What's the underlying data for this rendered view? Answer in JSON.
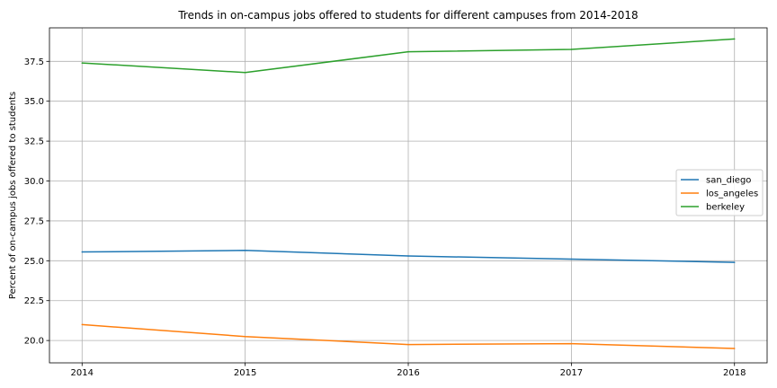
{
  "chart_data": {
    "type": "line",
    "title": "Trends in on-campus jobs offered to students for different campuses from 2014-2018",
    "xlabel": "",
    "ylabel": "Percent of on-campus jobs offered to students",
    "x": [
      2014,
      2015,
      2016,
      2017,
      2018
    ],
    "x_tick_labels": [
      "2014",
      "2015",
      "2016",
      "2017",
      "2018"
    ],
    "xlim": [
      2013.8,
      2018.2
    ],
    "ylim": [
      18.6,
      39.6
    ],
    "y_ticks": [
      20.0,
      22.5,
      25.0,
      27.5,
      30.0,
      32.5,
      35.0,
      37.5
    ],
    "y_tick_labels": [
      "20.0",
      "22.5",
      "25.0",
      "27.5",
      "30.0",
      "32.5",
      "35.0",
      "37.5"
    ],
    "grid": true,
    "legend_position": "center-right",
    "series": [
      {
        "name": "san_diego",
        "color": "#1f77b4",
        "values": [
          25.55,
          25.65,
          25.3,
          25.1,
          24.9
        ]
      },
      {
        "name": "los_angeles",
        "color": "#ff7f0e",
        "values": [
          21.0,
          20.25,
          19.75,
          19.8,
          19.5
        ]
      },
      {
        "name": "berkeley",
        "color": "#2ca02c",
        "values": [
          37.4,
          36.8,
          38.1,
          38.25,
          38.9
        ]
      }
    ]
  }
}
